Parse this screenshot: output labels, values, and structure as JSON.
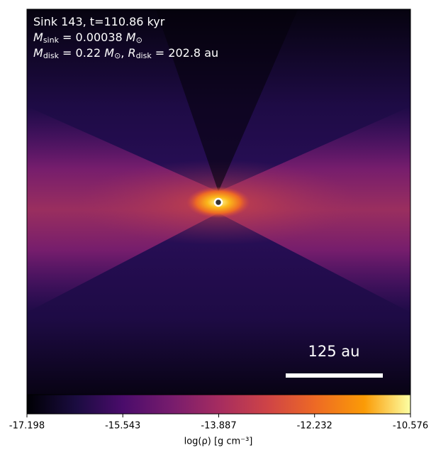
{
  "chart_data": {
    "type": "image",
    "annotations": [
      [
        {
          "text": "Sink 143, t=110.86 kyr"
        }
      ],
      [
        {
          "text": "M",
          "italic": true
        },
        {
          "text": "sink",
          "sub": true
        },
        {
          "text": " = 0.00038 "
        },
        {
          "text": "M",
          "italic": true
        },
        {
          "text": "⊙",
          "sub": true
        }
      ],
      [
        {
          "text": "M",
          "italic": true
        },
        {
          "text": "disk",
          "sub": true
        },
        {
          "text": " = 0.22 "
        },
        {
          "text": "M",
          "italic": true
        },
        {
          "text": "⊙",
          "sub": true
        },
        {
          "text": ", "
        },
        {
          "text": "R",
          "italic": true
        },
        {
          "text": "disk",
          "sub": true
        },
        {
          "text": " = 202.8 au"
        }
      ]
    ],
    "scale_bar_label": "125 au",
    "colorbar": {
      "label": "log(ρ) [g cm⁻³]",
      "xlim": [
        -17.198,
        -10.576
      ],
      "xticks": [
        -17.198,
        -15.543,
        -13.887,
        -12.232,
        -10.576
      ],
      "colormap": "inferno"
    }
  }
}
